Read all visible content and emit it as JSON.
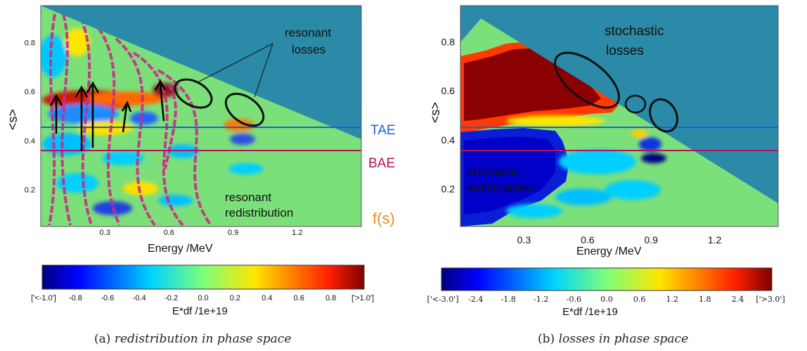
{
  "chart_data": [
    {
      "type": "heatmap",
      "panel": "(a)",
      "caption_label": "(a)",
      "caption_text": "redistribution in phase space",
      "xlabel": "Energy  /MeV",
      "ylabel": "<s>",
      "xticks": [
        "0.3",
        "0.6",
        "0.9",
        "1.2"
      ],
      "yticks": [
        "0.2",
        "0.4",
        "0.6",
        "0.8"
      ],
      "xlim": [
        0.0,
        1.5
      ],
      "ylim": [
        0.05,
        0.95
      ],
      "lines": [
        {
          "name": "TAE",
          "y": 0.45,
          "color": "#1f5fd6"
        },
        {
          "name": "BAE",
          "y": 0.35,
          "color": "#b0145a"
        }
      ],
      "side_label": "f(s)",
      "annotations": [
        "resonant losses",
        "resonant redistribution"
      ],
      "colorbar": {
        "label": "E*df  /1e+19",
        "ticks": [
          "['<-1.0']",
          "-0.8",
          "-0.6",
          "-0.4",
          "-0.2",
          "0.0",
          "0.2",
          "0.4",
          "0.6",
          "0.8",
          "['>1.0']"
        ],
        "range": [
          -1.0,
          1.0
        ]
      }
    },
    {
      "type": "heatmap",
      "panel": "(b)",
      "caption_label": "(b)",
      "caption_text": "losses in phase space",
      "xlabel": "Energy  /MeV",
      "ylabel": "<s>",
      "xticks": [
        "0.3",
        "0.6",
        "0.9",
        "1.2"
      ],
      "yticks": [
        "0.2",
        "0.4",
        "0.6",
        "0.8"
      ],
      "xlim": [
        0.0,
        1.5
      ],
      "ylim": [
        0.05,
        0.95
      ],
      "lines": [
        {
          "name": "TAE",
          "y": 0.45,
          "color": "#1f5fd6"
        },
        {
          "name": "BAE",
          "y": 0.35,
          "color": "#b0145a"
        }
      ],
      "annotations": [
        "stochastic losses",
        "stochastic redistribution"
      ],
      "colorbar": {
        "label": "E*df  /1e+19",
        "ticks": [
          "['<-3.0']",
          "-2.4",
          "-1.8",
          "-1.2",
          "-0.6",
          "0.0",
          "0.6",
          "1.2",
          "1.8",
          "2.4",
          "['>3.0']"
        ],
        "range": [
          -3.0,
          3.0
        ]
      }
    }
  ],
  "colors": {
    "background_field": "#7be07a",
    "forbidden_region": "#2a8aa8",
    "tae_line": "#1f5fd6",
    "bae_line": "#b0145a",
    "fs_wedge": "#f08a1c",
    "resonance_curves": "#cc2a8a"
  }
}
